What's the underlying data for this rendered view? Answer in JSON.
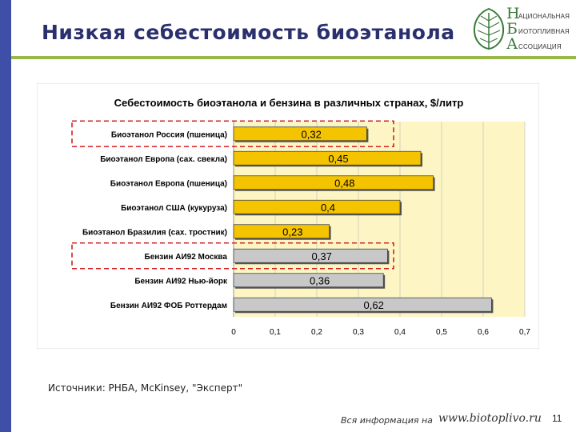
{
  "header": {
    "title": "Низкая себестоимость биоэтанола"
  },
  "logo": {
    "letters": [
      "Н",
      "Б",
      "А"
    ],
    "words": [
      "АЦИОНАЛЬНАЯ",
      "ИОТОПЛИВНАЯ",
      "ССОЦИАЦИЯ"
    ]
  },
  "chart_data": {
    "type": "bar",
    "orientation": "horizontal",
    "title": "Себестоимость биоэтанола и бензина в различных странах, $/литр",
    "categories": [
      "Биоэтанол Россия (пшеница)",
      "Биоэтанол Европа (сах. свекла)",
      "Биоэтанол Европа (пшеница)",
      "Биоэтанол США (кукуруза)",
      "Биоэтанол Бразилия (сах. тростник)",
      "Бензин АИ92 Москва",
      "Бензин АИ92 Нью-йорк",
      "Бензин АИ92 ФОБ Роттердам"
    ],
    "values": [
      0.32,
      0.45,
      0.48,
      0.4,
      0.23,
      0.37,
      0.36,
      0.62
    ],
    "value_labels": [
      "0,32",
      "0,45",
      "0,48",
      "0,4",
      "0,23",
      "0,37",
      "0,36",
      "0,62"
    ],
    "bar_colors": [
      "#f5c400",
      "#f5c400",
      "#f5c400",
      "#f5c400",
      "#f5c400",
      "#c8c8c8",
      "#c8c8c8",
      "#c8c8c8"
    ],
    "highlighted": [
      "Биоэтанол Россия (пшеница)",
      "Бензин АИ92 Москва"
    ],
    "highlight_color": "#d42020",
    "plot_background": "#fdf6c4",
    "xlim": [
      0,
      0.7
    ],
    "xticks": [
      "0",
      "0,1",
      "0,2",
      "0,3",
      "0,4",
      "0,5",
      "0,6",
      "0,7"
    ],
    "grid": true,
    "legend": "none"
  },
  "source": "Источники: РНБА, McKinsey, \"Эксперт\"",
  "footer": {
    "note": "Вся информация на",
    "url": "www.biotoplivo.ru",
    "page": "11"
  }
}
